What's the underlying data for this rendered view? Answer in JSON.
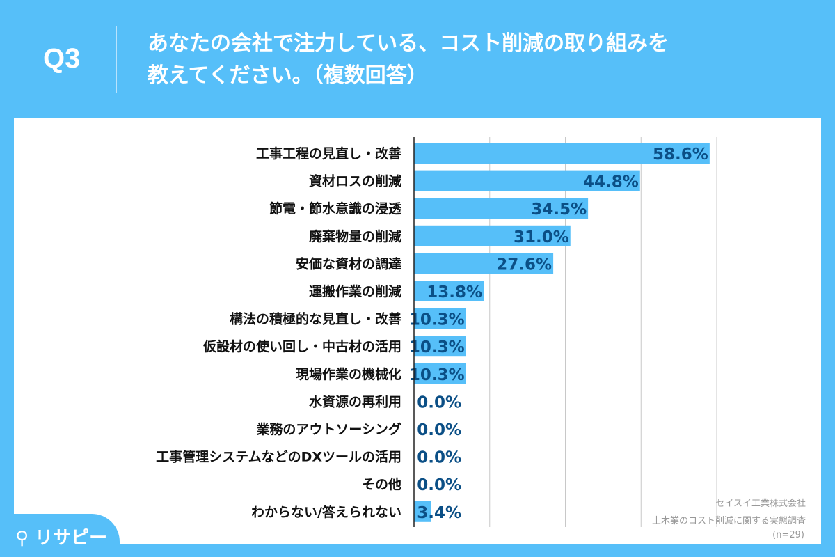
{
  "header": {
    "question_number": "Q3",
    "title_line1": "あなたの会社で注力している、コスト削減の取り組みを",
    "title_line2": "教えてください。（複数回答）"
  },
  "brand": {
    "logo_text": "リサピー"
  },
  "source": {
    "company": "セイスイ工業株式会社",
    "survey": "土木業のコスト削減に関する実態調査",
    "n": "(n=29)"
  },
  "colors": {
    "background": "#56bff9",
    "bar": "#56bff9",
    "label": "#0b4f86"
  },
  "chart_data": {
    "type": "bar",
    "orientation": "horizontal",
    "xlim": [
      0,
      60
    ],
    "gridlines": [
      15,
      30,
      45,
      60
    ],
    "grid": true,
    "categories": [
      "工事工程の見直し・改善",
      "資材ロスの削減",
      "節電・節水意識の浸透",
      "廃棄物量の削減",
      "安価な資材の調達",
      "運搬作業の削減",
      "構法の積極的な見直し・改善",
      "仮設材の使い回し・中古材の活用",
      "現場作業の機械化",
      "水資源の再利用",
      "業務のアウトソーシング",
      "工事管理システムなどのDXツールの活用",
      "その他",
      "わからない/答えられない"
    ],
    "values": [
      58.6,
      44.8,
      34.5,
      31.0,
      27.6,
      13.8,
      10.3,
      10.3,
      10.3,
      0.0,
      0.0,
      0.0,
      0.0,
      3.4
    ],
    "labels": [
      "58.6%",
      "44.8%",
      "34.5%",
      "31.0%",
      "27.6%",
      "13.8%",
      "10.3%",
      "10.3%",
      "10.3%",
      "0.0%",
      "0.0%",
      "0.0%",
      "0.0%",
      "3.4%"
    ]
  }
}
